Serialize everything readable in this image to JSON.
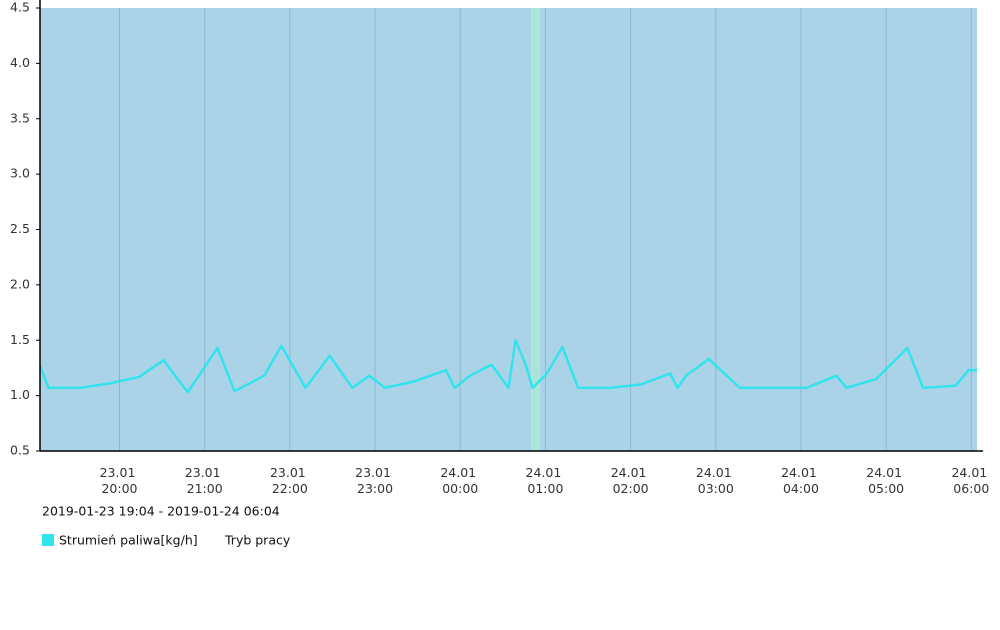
{
  "chart_data": {
    "type": "line",
    "subtitle": "2019-01-23 19:04 - 2019-01-24 06:04",
    "x": [
      "23.01 19:04",
      "23.01 19:10",
      "23.01 19:32",
      "23.01 19:53",
      "23.01 20:14",
      "23.01 20:31",
      "23.01 20:48",
      "23.01 21:09",
      "23.01 21:21",
      "23.01 21:42",
      "23.01 21:54",
      "23.01 22:11",
      "23.01 22:28",
      "23.01 22:44",
      "23.01 22:56",
      "23.01 23:07",
      "23.01 23:28",
      "23.01 23:50",
      "23.01 23:56",
      "24.01 00:07",
      "24.01 00:22",
      "24.01 00:34",
      "24.01 00:39",
      "24.01 00:46",
      "24.01 00:51",
      "24.01 01:01",
      "24.01 01:12",
      "24.01 01:23",
      "24.01 01:45",
      "24.01 02:07",
      "24.01 02:28",
      "24.01 02:33",
      "24.01 02:39",
      "24.01 02:55",
      "24.01 03:17",
      "24.01 03:38",
      "24.01 04:04",
      "24.01 04:25",
      "24.01 04:32",
      "24.01 04:53",
      "24.01 05:15",
      "24.01 05:26",
      "24.01 05:49",
      "24.01 05:58",
      "24.01 06:04"
    ],
    "series": [
      {
        "name": "Strumień paliwa[kg/h]",
        "color": "#33e3ec",
        "values": [
          1.27,
          1.07,
          1.07,
          1.11,
          1.17,
          1.32,
          1.03,
          1.43,
          1.04,
          1.18,
          1.45,
          1.07,
          1.36,
          1.07,
          1.18,
          1.07,
          1.13,
          1.23,
          1.07,
          1.18,
          1.28,
          1.07,
          1.5,
          1.28,
          1.07,
          1.2,
          1.44,
          1.07,
          1.07,
          1.1,
          1.2,
          1.07,
          1.18,
          1.33,
          1.07,
          1.07,
          1.07,
          1.18,
          1.07,
          1.15,
          1.43,
          1.07,
          1.09,
          1.23,
          1.23
        ]
      }
    ],
    "bands": {
      "name": "Tryb pracy",
      "segments": [
        {
          "from": "23.01 19:04",
          "to": "24.01 00:50",
          "color": "#abd3e8"
        },
        {
          "from": "24.01 00:50",
          "to": "24.01 00:56",
          "color": "#a9e6d9"
        },
        {
          "from": "24.01 00:56",
          "to": "24.01 06:04",
          "color": "#abd3e8"
        }
      ]
    },
    "xlim": [
      "23.01 19:04",
      "24.01 06:04"
    ],
    "xticks": [
      "23.01 20:00",
      "23.01 21:00",
      "23.01 22:00",
      "23.01 23:00",
      "24.01 00:00",
      "24.01 01:00",
      "24.01 02:00",
      "24.01 03:00",
      "24.01 04:00",
      "24.01 05:00",
      "24.01 06:00"
    ],
    "ylim": [
      0.5,
      4.5
    ],
    "yticks": [
      0.5,
      {
        "value": 1,
        "label": "1.0"
      },
      1.5,
      {
        "value": 2,
        "label": "2.0"
      },
      2.5,
      {
        "value": 3,
        "label": "3.0"
      },
      3.5,
      {
        "value": 4,
        "label": "4.0"
      },
      4.5
    ],
    "grid": true
  }
}
